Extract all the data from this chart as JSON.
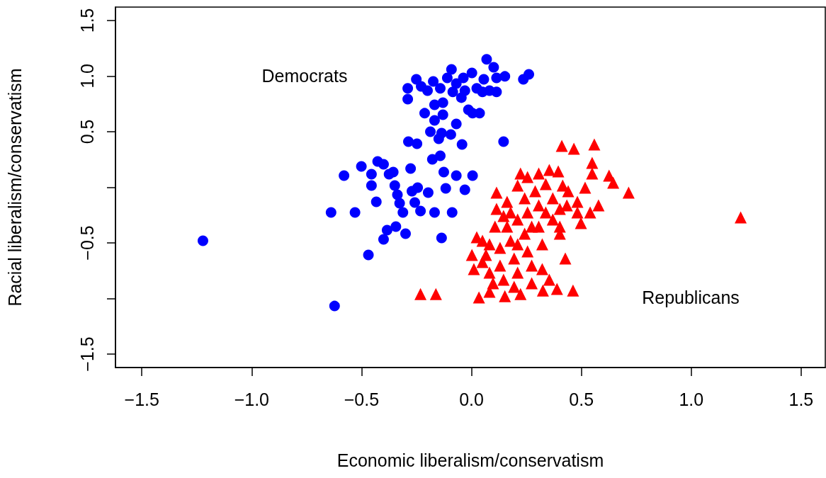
{
  "chart_data": {
    "type": "scatter",
    "xlabel": "Economic liberalism/conservatism",
    "ylabel": "Racial liberalism/conservatism",
    "xlim": [
      -1.62,
      1.61
    ],
    "ylim": [
      -1.62,
      1.62
    ],
    "xticks": [
      {
        "value": -1.5,
        "label": "−1.5"
      },
      {
        "value": -1,
        "label": "−1.0"
      },
      {
        "value": -0.5,
        "label": "−0.5"
      },
      {
        "value": 0,
        "label": "0.0"
      },
      {
        "value": 0.5,
        "label": "0.5"
      },
      {
        "value": 1,
        "label": "1.0"
      },
      {
        "value": 1.5,
        "label": "1.5"
      }
    ],
    "yticks": [
      {
        "value": -1.5,
        "label": "−1.5"
      },
      {
        "value": -1,
        "label": null
      },
      {
        "value": -0.5,
        "label": "−0.5"
      },
      {
        "value": 0,
        "label": null
      },
      {
        "value": 0.5,
        "label": "0.5"
      },
      {
        "value": 1,
        "label": "1.0"
      },
      {
        "value": 1.5,
        "label": "1.5"
      }
    ],
    "annotations": [
      "Democrats",
      "Republicans"
    ],
    "series": [
      {
        "color": "#0000ff",
        "marker": "circle",
        "x": [
          -1.222,
          -0.623,
          -0.639,
          -0.469,
          -0.58,
          -0.53,
          -0.501,
          -0.455,
          -0.427,
          -0.4,
          -0.455,
          -0.433,
          -0.4,
          -0.384,
          -0.375,
          -0.356,
          -0.349,
          -0.337,
          -0.327,
          -0.312,
          -0.3,
          -0.344,
          -0.277,
          -0.271,
          -0.258,
          -0.245,
          -0.232,
          -0.197,
          -0.178,
          -0.168,
          -0.126,
          -0.117,
          -0.088,
          -0.136,
          -0.069,
          -0.03,
          0.005,
          -0.287,
          -0.248,
          0.146,
          -0.043,
          -0.149,
          -0.142,
          -0.094,
          -0.187,
          -0.136,
          -0.069,
          -0.213,
          -0.168,
          -0.13,
          -0.29,
          -0.29,
          -0.251,
          -0.229,
          -0.2,
          -0.168,
          -0.13,
          -0.085,
          -0.069,
          -0.037,
          -0.091,
          0.002,
          -0.046,
          -0.014,
          0.005,
          0.037,
          0.024,
          0.056,
          0.069,
          0.101,
          0.114,
          0.114,
          0.152,
          0.082,
          0.05,
          0.236,
          0.261,
          -0.11,
          -0.142,
          -0.174,
          -0.03
        ],
        "values": [
          -0.481,
          -1.067,
          -0.226,
          -0.608,
          0.105,
          -0.226,
          0.188,
          0.118,
          0.232,
          0.207,
          0.016,
          -0.131,
          -0.468,
          -0.385,
          0.118,
          0.137,
          0.016,
          -0.067,
          -0.143,
          -0.226,
          -0.417,
          -0.354,
          0.169,
          -0.035,
          -0.137,
          -0.003,
          -0.213,
          -0.048,
          0.252,
          -0.226,
          0.137,
          -0.01,
          -0.226,
          -0.455,
          0.105,
          -0.022,
          0.105,
          0.411,
          0.392,
          0.411,
          0.385,
          0.436,
          0.283,
          0.475,
          0.5,
          0.487,
          0.57,
          0.666,
          0.602,
          0.653,
          0.889,
          0.793,
          0.971,
          0.907,
          0.869,
          0.742,
          0.761,
          0.857,
          0.933,
          0.984,
          1.06,
          1.028,
          0.806,
          0.697,
          0.666,
          0.666,
          0.889,
          0.971,
          1.15,
          1.079,
          0.984,
          0.857,
          0.997,
          0.869,
          0.857,
          0.971,
          1.016,
          0.984,
          0.889,
          0.952,
          0.869
        ]
      },
      {
        "color": "#ff0000",
        "marker": "triangle",
        "x": [
          1.225,
          -0.232,
          -0.162,
          0.411,
          0.466,
          0.559,
          0.549,
          0.549,
          0.626,
          0.645,
          0.715,
          0.517,
          0.578,
          0.54,
          0.462,
          0.427,
          0.389,
          0.325,
          0.034,
          0.082,
          0.152,
          0.223,
          0.011,
          0.002,
          0.024,
          0.082,
          0.114,
          0.114,
          0.107,
          0.162,
          0.21,
          0.223,
          0.255,
          0.306,
          0.354,
          0.395,
          0.415,
          0.44,
          0.434,
          0.482,
          0.498,
          0.37,
          0.306,
          0.255,
          0.21,
          0.162,
          0.178,
          0.242,
          0.306,
          0.37,
          0.402,
          0.322,
          0.255,
          0.194,
          0.13,
          0.082,
          0.146,
          0.21,
          0.274,
          0.322,
          0.354,
          0.274,
          0.194,
          0.098,
          0.05,
          0.066,
          0.13,
          0.242,
          0.29,
          0.338,
          0.178,
          0.146,
          0.338,
          0.402,
          0.274,
          0.21,
          0.05,
          0.482,
          0.402
        ],
        "values": [
          -0.271,
          -0.959,
          -0.959,
          0.373,
          0.347,
          0.385,
          0.22,
          0.124,
          0.105,
          0.041,
          -0.048,
          -0.003,
          -0.162,
          -0.226,
          -0.927,
          -0.64,
          -0.914,
          -0.927,
          -0.99,
          -0.939,
          -0.978,
          -0.959,
          -0.735,
          -0.608,
          -0.449,
          -0.513,
          -0.048,
          -0.194,
          -0.354,
          -0.131,
          0.016,
          0.124,
          0.092,
          0.124,
          0.156,
          0.143,
          0.016,
          -0.035,
          -0.162,
          -0.226,
          -0.322,
          -0.099,
          -0.162,
          -0.226,
          -0.29,
          -0.354,
          -0.481,
          -0.417,
          -0.354,
          -0.29,
          -0.417,
          -0.513,
          -0.576,
          -0.64,
          -0.704,
          -0.767,
          -0.831,
          -0.767,
          -0.704,
          -0.735,
          -0.831,
          -0.863,
          -0.895,
          -0.863,
          -0.672,
          -0.608,
          -0.545,
          -0.099,
          -0.035,
          0.029,
          -0.226,
          -0.258,
          -0.226,
          -0.194,
          -0.354,
          -0.513,
          -0.481,
          -0.131,
          -0.354
        ]
      }
    ]
  }
}
